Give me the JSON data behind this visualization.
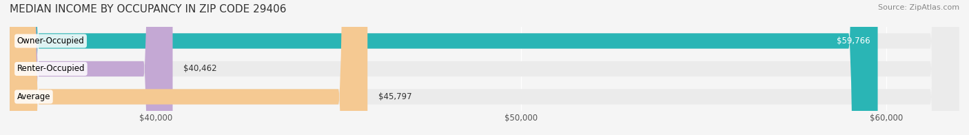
{
  "title": "MEDIAN INCOME BY OCCUPANCY IN ZIP CODE 29406",
  "source": "Source: ZipAtlas.com",
  "categories": [
    "Owner-Occupied",
    "Renter-Occupied",
    "Average"
  ],
  "values": [
    59766,
    40462,
    45797
  ],
  "bar_colors": [
    "#2ab5b5",
    "#c4a8d4",
    "#f5c992"
  ],
  "bar_bg_color": "#ebebeb",
  "value_labels": [
    "$59,766",
    "$40,462",
    "$45,797"
  ],
  "xmin": 36000,
  "xmax": 62000,
  "xticks": [
    40000,
    50000,
    60000
  ],
  "xtick_labels": [
    "$40,000",
    "$50,000",
    "$60,000"
  ],
  "title_fontsize": 11,
  "source_fontsize": 8,
  "label_fontsize": 8.5,
  "value_fontsize": 8.5,
  "tick_fontsize": 8.5,
  "bar_height": 0.55,
  "background_color": "#f5f5f5"
}
